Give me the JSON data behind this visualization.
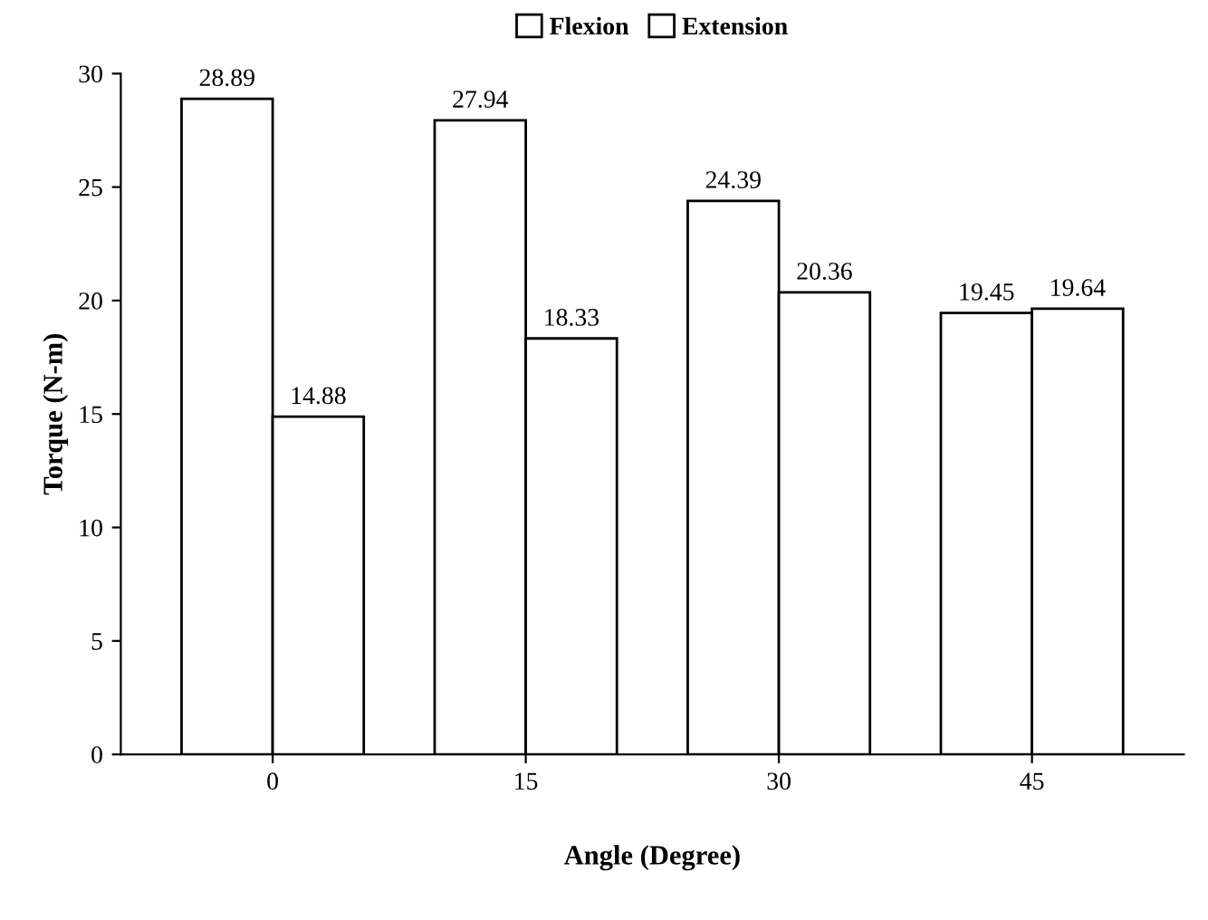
{
  "chart_data": {
    "type": "bar",
    "xlabel": "Angle (Degree)",
    "ylabel": "Torque (N-m)",
    "categories": [
      "0",
      "15",
      "30",
      "45"
    ],
    "series": [
      {
        "name": "Flexion",
        "color": "#ffffff",
        "values": [
          28.89,
          27.94,
          24.39,
          19.45
        ]
      },
      {
        "name": "Extension",
        "color": "#ffffff",
        "values": [
          14.88,
          18.33,
          20.36,
          19.64
        ]
      }
    ],
    "ylim": [
      0,
      30
    ],
    "yticks": [
      0,
      5,
      10,
      15,
      20,
      25,
      30
    ],
    "grid": false,
    "legend": "top",
    "data_labels": true
  }
}
